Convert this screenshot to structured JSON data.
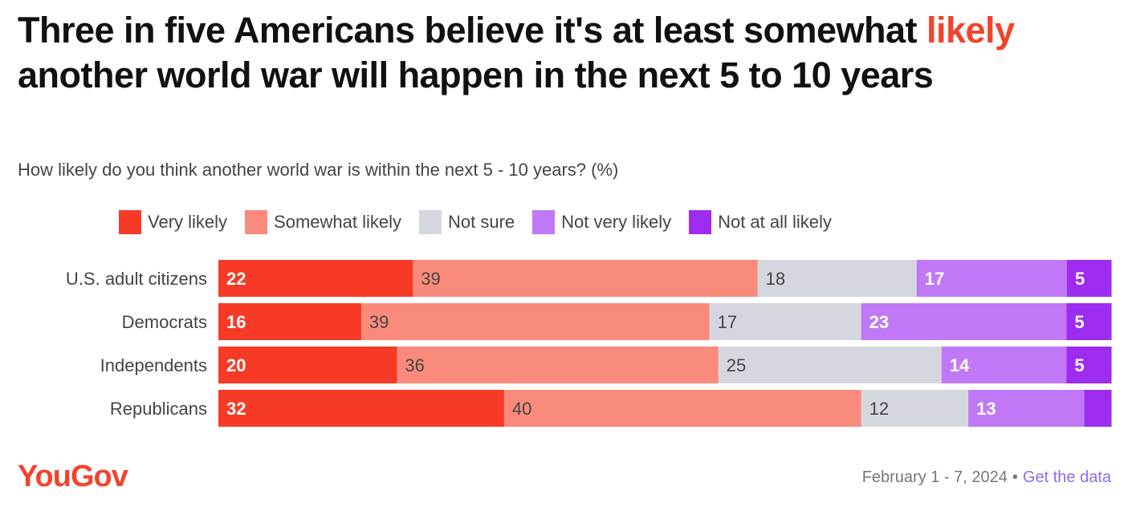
{
  "title": {
    "part1": "Three in five Americans believe it's at least somewhat ",
    "highlight": "likely",
    "part2": " another world war will happen in the next 5 to 10 years"
  },
  "subtitle": "How likely do you think another world war is within the next 5 - 10 years? (%)",
  "colors": {
    "very_likely": "#f73a26",
    "somewhat_likely": "#fa8b7c",
    "not_sure": "#d5d7df",
    "not_very_likely": "#c178f7",
    "not_at_all_likely": "#9d2cf0",
    "accent": "#f2432c",
    "link": "#8b6cf0"
  },
  "chart_data": {
    "type": "bar",
    "orientation": "horizontal",
    "stacked": true,
    "categories": [
      "U.S. adult citizens",
      "Democrats",
      "Independents",
      "Republicans"
    ],
    "series": [
      {
        "name": "Very likely",
        "values": [
          22,
          16,
          20,
          32
        ]
      },
      {
        "name": "Somewhat likely",
        "values": [
          39,
          39,
          36,
          40
        ]
      },
      {
        "name": "Not sure",
        "values": [
          18,
          17,
          25,
          12
        ]
      },
      {
        "name": "Not very likely",
        "values": [
          17,
          23,
          14,
          13
        ]
      },
      {
        "name": "Not at all likely",
        "values": [
          5,
          5,
          5,
          3
        ]
      }
    ],
    "data_labels": [
      [
        "22",
        "39",
        "18",
        "17",
        "5"
      ],
      [
        "16",
        "39",
        "17",
        "23",
        "5"
      ],
      [
        "20",
        "36",
        "25",
        "14",
        "5"
      ],
      [
        "32",
        "40",
        "12",
        "13",
        ""
      ]
    ],
    "legend_position": "top",
    "grid": false
  },
  "footer": {
    "logo": "YouGov",
    "date": "February 1 - 7, 2024",
    "separator": "•",
    "link": "Get the data"
  }
}
